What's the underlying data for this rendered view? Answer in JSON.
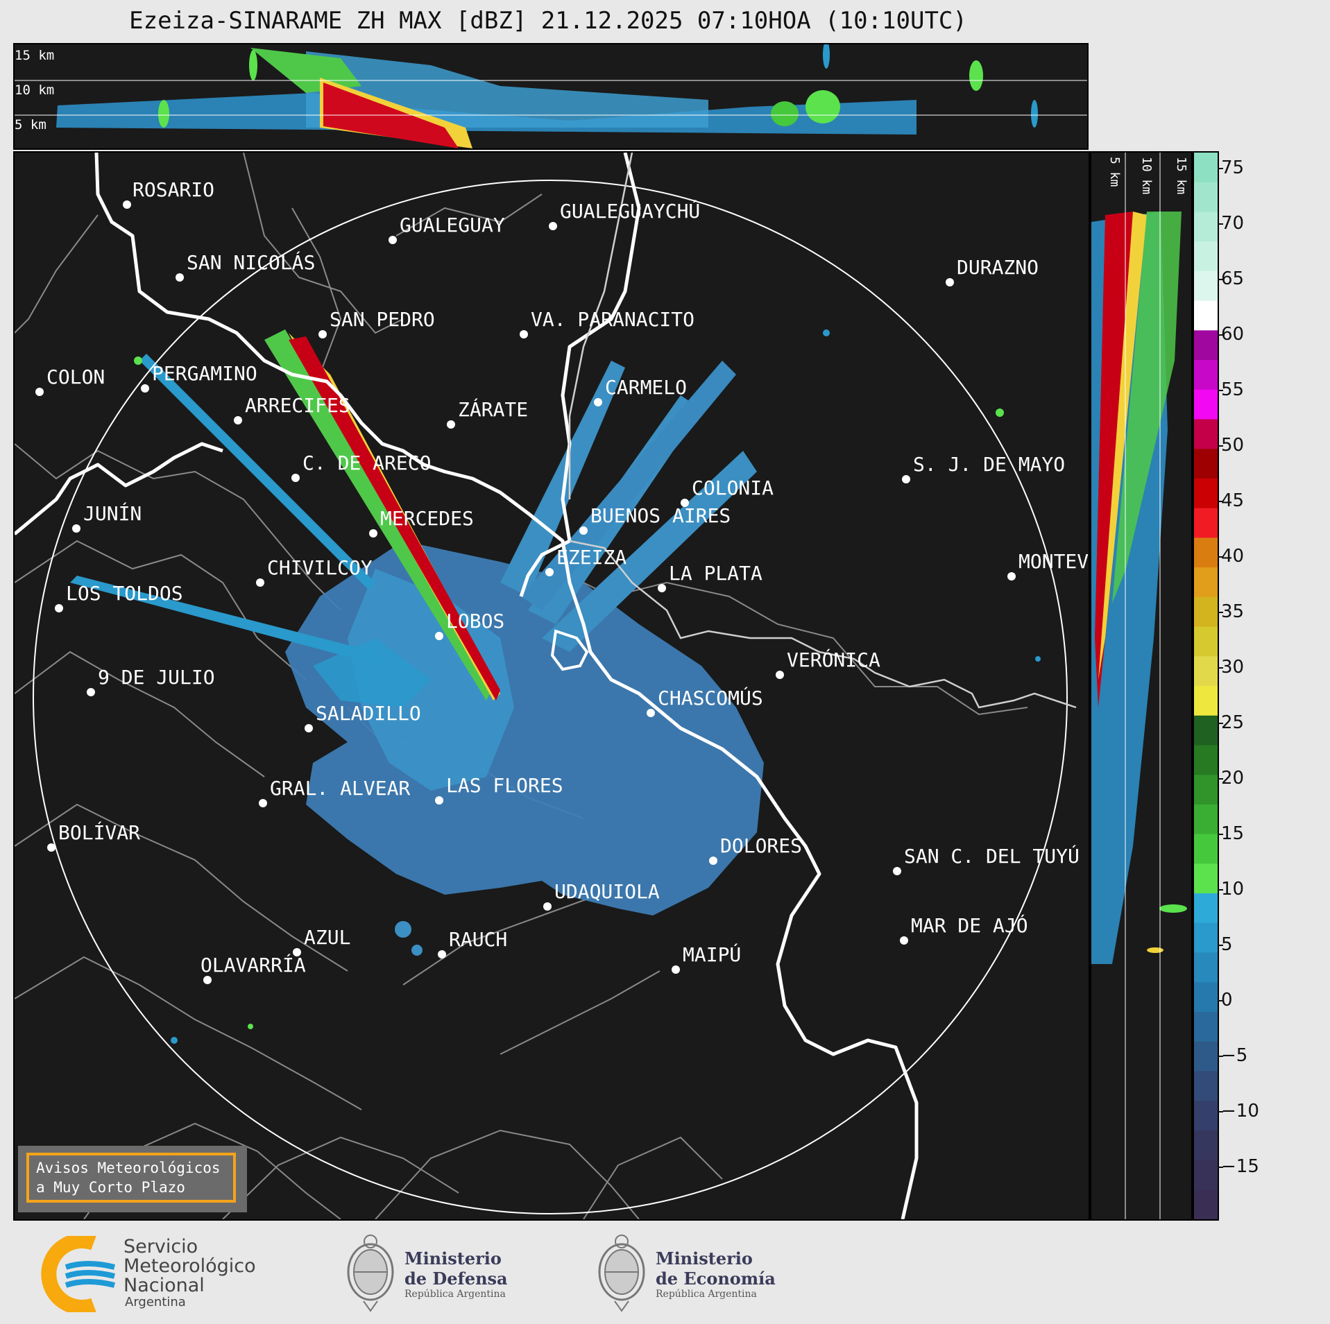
{
  "title": "Ezeiza-SINARAME ZH MAX [dBZ] 21.12.2025 07:10HOA (10:10UTC)",
  "height_labels": [
    "15 km",
    "10 km",
    "5 km"
  ],
  "side_height_labels": [
    "5 km",
    "10 km",
    "15 km"
  ],
  "colorbar": {
    "ticks": [
      "75",
      "70",
      "65",
      "60",
      "55",
      "50",
      "45",
      "40",
      "35",
      "30",
      "25",
      "20",
      "15",
      "10",
      "5",
      "0",
      "−5",
      "−10",
      "−15"
    ],
    "colors": [
      "#8de0c1",
      "#a1e6cc",
      "#b5ecd7",
      "#c9f1e2",
      "#ddf6ed",
      "#ffffff",
      "#a0079f",
      "#c808c9",
      "#f208f2",
      "#c40049",
      "#9e0001",
      "#cb0003",
      "#f11b24",
      "#d97d10",
      "#e09e1a",
      "#d3b31e",
      "#d5c92f",
      "#e1d94a",
      "#eee73d",
      "#1f6120",
      "#277a22",
      "#30942a",
      "#3aae33",
      "#46c83c",
      "#5be24d",
      "#2eaad8",
      "#2a99cb",
      "#2889bd",
      "#2679ad",
      "#2a699b",
      "#2e5a89",
      "#324b78",
      "#343f6c",
      "#36375f",
      "#383259",
      "#3b2e55"
    ]
  },
  "cities": [
    {
      "name": "ROSARIO"
    },
    {
      "name": "GUALEGUAYCHÚ"
    },
    {
      "name": "GUALEGUAY"
    },
    {
      "name": "SAN NICOLÁS"
    },
    {
      "name": "DURAZNO"
    },
    {
      "name": "SAN PEDRO"
    },
    {
      "name": "VA. PARANACITO"
    },
    {
      "name": "COLON"
    },
    {
      "name": "PERGAMINO"
    },
    {
      "name": "CARMELO"
    },
    {
      "name": "ARRECIFES"
    },
    {
      "name": "ZÁRATE"
    },
    {
      "name": "S. J. DE MAYO"
    },
    {
      "name": "C. DE ARECO"
    },
    {
      "name": "COLONIA"
    },
    {
      "name": "JUNÍN"
    },
    {
      "name": "BUENOS AIRES"
    },
    {
      "name": "MERCEDES"
    },
    {
      "name": "MONTEVIDEO"
    },
    {
      "name": "EZEIZA"
    },
    {
      "name": "CHIVILCOY"
    },
    {
      "name": "LA PLATA"
    },
    {
      "name": "LOS TOLDOS"
    },
    {
      "name": "LOBOS"
    },
    {
      "name": "VERÓNICA"
    },
    {
      "name": "9 DE JULIO"
    },
    {
      "name": "CHASCOMÚS"
    },
    {
      "name": "SALADILLO"
    },
    {
      "name": "GRAL. ALVEAR"
    },
    {
      "name": "LAS FLORES"
    },
    {
      "name": "BOLÍVAR"
    },
    {
      "name": "DOLORES"
    },
    {
      "name": "SAN C. DEL TUYÚ"
    },
    {
      "name": "UDAQUIOLA"
    },
    {
      "name": "AZUL"
    },
    {
      "name": "RAUCH"
    },
    {
      "name": "MAR DE AJÓ"
    },
    {
      "name": "OLAVARRÍA"
    },
    {
      "name": "MAIPÚ"
    }
  ],
  "aviso": {
    "line1": "Avisos Meteorológicos",
    "line2": "a Muy Corto Plazo"
  },
  "logos": {
    "smn": {
      "line1": "Servicio",
      "line2": "Meteorológico",
      "line3": "Nacional",
      "line4": "Argentina"
    },
    "defensa": {
      "line1": "Ministerio",
      "line2": "de Defensa",
      "line3": "República Argentina"
    },
    "economia": {
      "line1": "Ministerio",
      "line2": "de Economía",
      "line3": "República Argentina"
    }
  },
  "colors": {
    "background": "#1a1a1a",
    "radar_blue": "#3b8fc2",
    "coast": "#ffffff",
    "borders": "#8a8a8a",
    "smn_orange": "#f7a90d",
    "smn_blue": "#1e9ad6"
  }
}
